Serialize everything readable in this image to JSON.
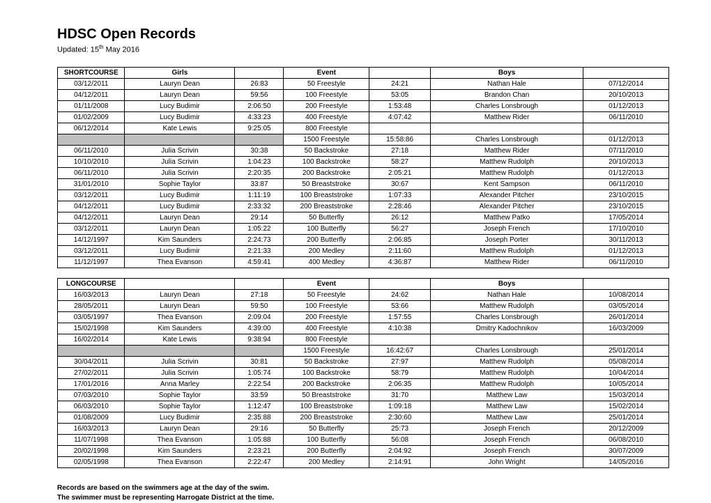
{
  "title": "HDSC Open Records",
  "updated_prefix": "Updated: 15",
  "updated_suffix": " May 2016",
  "updated_sup": "th",
  "footnotes": [
    "Records are based on the swimmers age at the day of the swim.",
    "The swimmer must be representing Harrogate District at the time."
  ],
  "colors": {
    "grey_row": "#bfbfbf",
    "border": "#000000",
    "background": "#ffffff",
    "text": "#000000"
  },
  "tables": [
    {
      "header": [
        "SHORTCOURSE",
        "Girls",
        "",
        "Event",
        "",
        "Boys",
        ""
      ],
      "rows": [
        {
          "gdate": "03/12/2011",
          "gname": "Lauryn Dean",
          "gtime": "26:83",
          "event": "50 Freestyle",
          "btime": "24:21",
          "bname": "Nathan Hale",
          "bdate": "07/12/2014",
          "grey": false
        },
        {
          "gdate": "04/12/2011",
          "gname": "Lauryn Dean",
          "gtime": "59:56",
          "event": "100 Freestyle",
          "btime": "53:05",
          "bname": "Brandon Chan",
          "bdate": "20/10/2013",
          "grey": false
        },
        {
          "gdate": "01/11/2008",
          "gname": "Lucy Budimir",
          "gtime": "2:06:50",
          "event": "200 Freestyle",
          "btime": "1:53:48",
          "bname": "Charles Lonsbrough",
          "bdate": "01/12/2013",
          "grey": false
        },
        {
          "gdate": "01/02/2009",
          "gname": "Lucy Budimir",
          "gtime": "4:33:23",
          "event": "400 Freestyle",
          "btime": "4:07:42",
          "bname": "Matthew Rider",
          "bdate": "06/11/2010",
          "grey": false
        },
        {
          "gdate": "06/12/2014",
          "gname": "Kate Lewis",
          "gtime": "9:25:05",
          "event": "800 Freestyle",
          "btime": "",
          "bname": "",
          "bdate": "",
          "grey": false
        },
        {
          "gdate": "",
          "gname": "",
          "gtime": "",
          "event": "1500 Freestyle",
          "btime": "15:58:86",
          "bname": "Charles Lonsbrough",
          "bdate": "01/12/2013",
          "grey": true
        },
        {
          "gdate": "06/11/2010",
          "gname": "Julia Scrivin",
          "gtime": "30:38",
          "event": "50 Backstroke",
          "btime": "27:18",
          "bname": "Matthew Rider",
          "bdate": "07/11/2010",
          "grey": false
        },
        {
          "gdate": "10/10/2010",
          "gname": "Julia Scrivin",
          "gtime": "1:04:23",
          "event": "100 Backstroke",
          "btime": "58:27",
          "bname": "Matthew Rudolph",
          "bdate": "20/10/2013",
          "grey": false
        },
        {
          "gdate": "06/11/2010",
          "gname": "Julia Scrivin",
          "gtime": "2:20:35",
          "event": "200 Backstroke",
          "btime": "2:05:21",
          "bname": "Matthew Rudolph",
          "bdate": "01/12/2013",
          "grey": false
        },
        {
          "gdate": "31/01/2010",
          "gname": "Sophie Taylor",
          "gtime": "33:87",
          "event": "50 Breaststroke",
          "btime": "30:67",
          "bname": "Kent Sampson",
          "bdate": "06/11/2010",
          "grey": false
        },
        {
          "gdate": "03/12/2011",
          "gname": "Lucy Budimir",
          "gtime": "1:11:19",
          "event": "100 Breaststroke",
          "btime": "1:07:33",
          "bname": "Alexander Pitcher",
          "bdate": "23/10/2015",
          "grey": false
        },
        {
          "gdate": "04/12/2011",
          "gname": "Lucy Budimir",
          "gtime": "2:33:32",
          "event": "200 Breaststroke",
          "btime": "2:28:46",
          "bname": "Alexander Pitcher",
          "bdate": "23/10/2015",
          "grey": false
        },
        {
          "gdate": "04/12/2011",
          "gname": "Lauryn Dean",
          "gtime": "29:14",
          "event": "50 Butterfly",
          "btime": "26:12",
          "bname": "Matthew Patko",
          "bdate": "17/05/2014",
          "grey": false
        },
        {
          "gdate": "03/12/2011",
          "gname": "Lauryn Dean",
          "gtime": "1:05:22",
          "event": "100 Butterfly",
          "btime": "56:27",
          "bname": "Joseph French",
          "bdate": "17/10/2010",
          "grey": false
        },
        {
          "gdate": "14/12/1997",
          "gname": "Kim Saunders",
          "gtime": "2:24:73",
          "event": "200 Butterfly",
          "btime": "2:06:85",
          "bname": "Joseph Porter",
          "bdate": "30/11/2013",
          "grey": false
        },
        {
          "gdate": "03/12/2011",
          "gname": "Lucy Budimir",
          "gtime": "2:21:33",
          "event": "200 Medley",
          "btime": "2:11:60",
          "bname": "Matthew Rudolph",
          "bdate": "01/12/2013",
          "grey": false
        },
        {
          "gdate": "11/12/1997",
          "gname": "Thea Evanson",
          "gtime": "4:59:41",
          "event": "400 Medley",
          "btime": "4:36:87",
          "bname": "Matthew Rider",
          "bdate": "06/11/2010",
          "grey": false
        }
      ]
    },
    {
      "header": [
        "LONGCOURSE",
        "",
        "",
        "Event",
        "",
        "Boys",
        ""
      ],
      "rows": [
        {
          "gdate": "16/03/2013",
          "gname": "Lauryn Dean",
          "gtime": "27:18",
          "event": "50 Freestyle",
          "btime": "24:62",
          "bname": "Nathan Hale",
          "bdate": "10/08/2014",
          "grey": false
        },
        {
          "gdate": "28/05/2011",
          "gname": "Lauryn Dean",
          "gtime": "59:50",
          "event": "100 Freestyle",
          "btime": "53:66",
          "bname": "Matthew Rudolph",
          "bdate": "03/05/2014",
          "grey": false
        },
        {
          "gdate": "03/05/1997",
          "gname": "Thea Evanson",
          "gtime": "2:09:04",
          "event": "200 Freestyle",
          "btime": "1:57:55",
          "bname": "Charles Lonsbrough",
          "bdate": "26/01/2014",
          "grey": false
        },
        {
          "gdate": "15/02/1998",
          "gname": "Kim Saunders",
          "gtime": "4:39:00",
          "event": "400 Freestyle",
          "btime": "4:10:38",
          "bname": "Dmitry Kadochnikov",
          "bdate": "16/03/2009",
          "grey": false
        },
        {
          "gdate": "16/02/2014",
          "gname": "Kate Lewis",
          "gtime": "9:38:94",
          "event": "800 Freestyle",
          "btime": "",
          "bname": "",
          "bdate": "",
          "grey": false
        },
        {
          "gdate": "",
          "gname": "",
          "gtime": "",
          "event": "1500 Freestyle",
          "btime": "16:42:67",
          "bname": "Charles Lonsbrough",
          "bdate": "25/01/2014",
          "grey": true
        },
        {
          "gdate": "30/04/2011",
          "gname": "Julia Scrivin",
          "gtime": "30:81",
          "event": "50 Backstroke",
          "btime": "27:97",
          "bname": "Matthew Rudolph",
          "bdate": "05/08/2014",
          "grey": false
        },
        {
          "gdate": "27/02/2011",
          "gname": "Julia Scrivin",
          "gtime": "1:05:74",
          "event": "100 Backstroke",
          "btime": "58:79",
          "bname": "Matthew Rudolph",
          "bdate": "10/04/2014",
          "grey": false
        },
        {
          "gdate": "17/01/2016",
          "gname": "Anna Marley",
          "gtime": "2:22:54",
          "event": "200 Backstroke",
          "btime": "2:06:35",
          "bname": "Matthew Rudolph",
          "bdate": "10/05/2014",
          "grey": false
        },
        {
          "gdate": "07/03/2010",
          "gname": "Sophie Taylor",
          "gtime": "33:59",
          "event": "50 Breaststroke",
          "btime": "31:70",
          "bname": "Matthew Law",
          "bdate": "15/03/2014",
          "grey": false
        },
        {
          "gdate": "06/03/2010",
          "gname": "Sophie Taylor",
          "gtime": "1:12:47",
          "event": "100 Breaststroke",
          "btime": "1:09:18",
          "bname": "Matthew Law",
          "bdate": "15/02/2014",
          "grey": false
        },
        {
          "gdate": "01/08/2009",
          "gname": "Lucy Budimir",
          "gtime": "2:35:88",
          "event": "200 Breaststroke",
          "btime": "2:30:60",
          "bname": "Matthew Law",
          "bdate": "25/01/2014",
          "grey": false
        },
        {
          "gdate": "16/03/2013",
          "gname": "Lauryn Dean",
          "gtime": "29:16",
          "event": "50 Butterfly",
          "btime": "25:73",
          "bname": "Joseph French",
          "bdate": "20/12/2009",
          "grey": false
        },
        {
          "gdate": "11/07/1998",
          "gname": "Thea Evanson",
          "gtime": "1:05:88",
          "event": "100 Butterfly",
          "btime": "56:08",
          "bname": "Joseph French",
          "bdate": "06/08/2010",
          "grey": false
        },
        {
          "gdate": "20/02/1998",
          "gname": "Kim Saunders",
          "gtime": "2:23:21",
          "event": "200 Butterfly",
          "btime": "2:04:92",
          "bname": "Joseph French",
          "bdate": "30/07/2009",
          "grey": false
        },
        {
          "gdate": "02/05/1998",
          "gname": "Thea Evanson",
          "gtime": "2:22:47",
          "event": "200 Medley",
          "btime": "2:14:91",
          "bname": "John Wright",
          "bdate": "14/05/2016",
          "grey": false
        }
      ]
    }
  ]
}
